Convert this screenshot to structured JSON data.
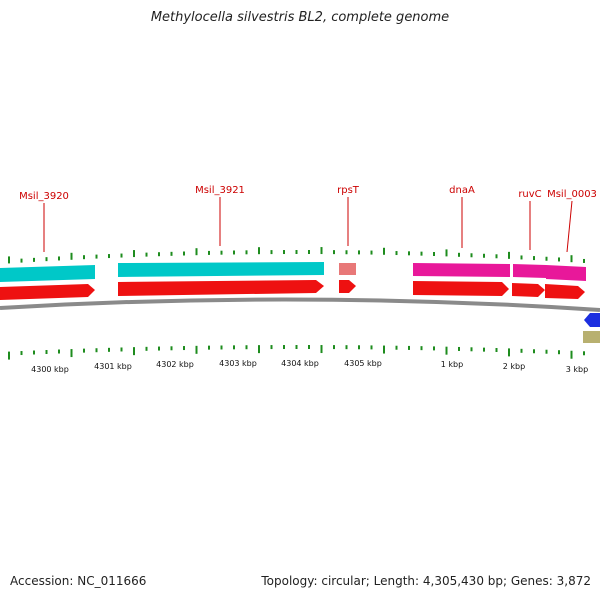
{
  "title": "Methylocella silvestris BL2, complete genome",
  "footer": {
    "accession": "Accession: NC_011666",
    "summary": "Topology: circular; Length: 4,305,430 bp; Genes: 3,872"
  },
  "genes": [
    {
      "name": "Msil_3920",
      "color": "#00c8c8"
    },
    {
      "name": "Msil_3921",
      "color": "#00c8c8"
    },
    {
      "name": "rpsT",
      "color": "#e87878"
    },
    {
      "name": "dnaA",
      "color": "#e8189a"
    },
    {
      "name": "ruvC",
      "color": "#e8189a"
    },
    {
      "name": "Msil_0003",
      "color": "#e8189a"
    }
  ],
  "scale_labels": [
    "4300 kbp",
    "4301 kbp",
    "4302 kbp",
    "4303 kbp",
    "4304 kbp",
    "4305 kbp",
    "1 kbp",
    "2 kbp",
    "3 kbp"
  ],
  "colors": {
    "cds_forward": "#ee1111",
    "backbone": "#8a8a8a",
    "ticks": "#1e8c1e",
    "gene_label": "#cc0000",
    "edge_blue": "#1c2fe0",
    "edge_olive": "#b8b070"
  }
}
